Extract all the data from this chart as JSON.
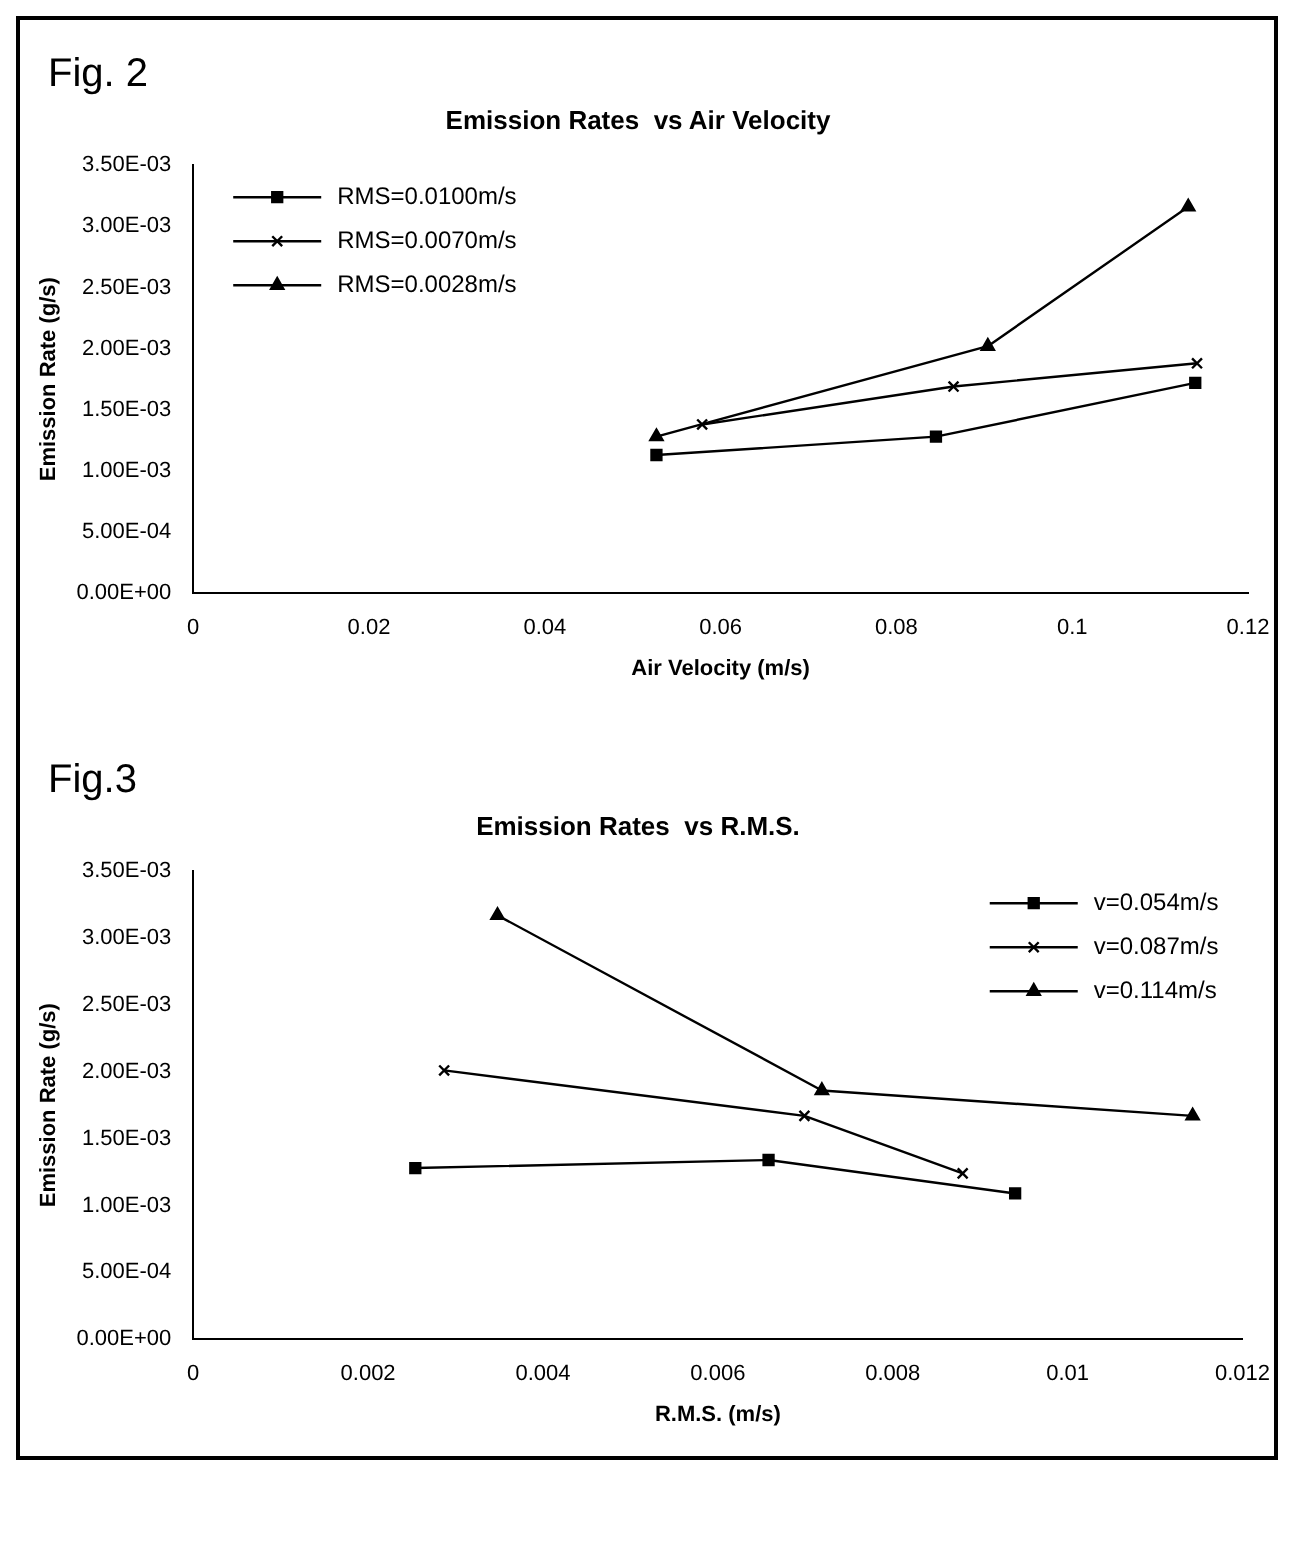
{
  "chart_data": [
    {
      "type": "line",
      "annotations": [
        "Fig. 2"
      ],
      "title": "Emission Rates  vs Air Velocity",
      "xlabel": "Air Velocity (m/s)",
      "ylabel": "Emission Rate (g/s)",
      "xlim": [
        0,
        0.12
      ],
      "xticks": [
        0,
        0.02,
        0.04,
        0.06,
        0.08,
        0.1,
        0.12
      ],
      "ylim": [
        0,
        0.0035
      ],
      "yticks": [
        {
          "value": 0,
          "label": "0.00E+00"
        },
        {
          "value": 0.0005,
          "label": "5.00E-04"
        },
        {
          "value": 0.001,
          "label": "1.00E-03"
        },
        {
          "value": 0.0015,
          "label": "1.50E-03"
        },
        {
          "value": 0.002,
          "label": "2.00E-03"
        },
        {
          "value": 0.0025,
          "label": "2.50E-03"
        },
        {
          "value": 0.003,
          "label": "3.00E-03"
        },
        {
          "value": 0.0035,
          "label": "3.50E-03"
        }
      ],
      "grid": false,
      "legend": "top left",
      "line_style": "solid",
      "series": [
        {
          "name": "RMS=0.0100m/s",
          "color": "#000000",
          "marker": "square",
          "x": [
            0.0527,
            0.0845,
            0.114
          ],
          "values": [
            0.00113,
            0.00128,
            0.00172
          ]
        },
        {
          "name": "RMS=0.0070m/s",
          "color": "#000000",
          "marker": "cross",
          "x": [
            0.0579,
            0.0865,
            0.1142
          ],
          "values": [
            0.00138,
            0.00169,
            0.00188
          ]
        },
        {
          "name": "RMS=0.0028m/s",
          "color": "#000000",
          "marker": "triangle",
          "x": [
            0.0527,
            0.0904,
            0.1132
          ],
          "values": [
            0.00128,
            0.00202,
            0.00316
          ]
        }
      ]
    },
    {
      "type": "line",
      "annotations": [
        "Fig.3"
      ],
      "title": "Emission Rates  vs R.M.S.",
      "xlabel": "R.M.S. (m/s)",
      "ylabel": "Emission Rate (g/s)",
      "xlim": [
        0,
        0.012
      ],
      "xticks": [
        0,
        0.002,
        0.004,
        0.006,
        0.008,
        0.01,
        0.012
      ],
      "ylim": [
        0,
        0.0035
      ],
      "yticks": [
        {
          "value": 0,
          "label": "0.00E+00"
        },
        {
          "value": 0.0005,
          "label": "5.00E-04"
        },
        {
          "value": 0.001,
          "label": "1.00E-03"
        },
        {
          "value": 0.0015,
          "label": "1.50E-03"
        },
        {
          "value": 0.002,
          "label": "2.00E-03"
        },
        {
          "value": 0.0025,
          "label": "2.50E-03"
        },
        {
          "value": 0.003,
          "label": "3.00E-03"
        },
        {
          "value": 0.0035,
          "label": "3.50E-03"
        }
      ],
      "grid": false,
      "legend": "top right",
      "line_style": "solid",
      "series": [
        {
          "name": "v=0.054m/s",
          "color": "#000000",
          "marker": "square",
          "x": [
            0.00254,
            0.00658,
            0.0094
          ],
          "values": [
            0.00128,
            0.00134,
            0.00109
          ]
        },
        {
          "name": "v=0.087m/s",
          "color": "#000000",
          "marker": "cross",
          "x": [
            0.00287,
            0.00699,
            0.0088
          ],
          "values": [
            0.00201,
            0.00167,
            0.00124
          ]
        },
        {
          "name": "v=0.114m/s",
          "color": "#000000",
          "marker": "triangle",
          "x": [
            0.00348,
            0.00719,
            0.01143
          ],
          "values": [
            0.00317,
            0.00186,
            0.00167
          ]
        }
      ]
    }
  ]
}
